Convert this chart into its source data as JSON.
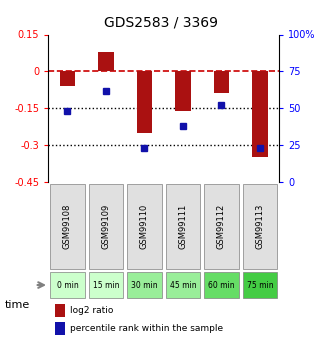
{
  "title": "GDS2583 / 3369",
  "samples": [
    "GSM99108",
    "GSM99109",
    "GSM99110",
    "GSM99111",
    "GSM99112",
    "GSM99113"
  ],
  "time_labels": [
    "0 min",
    "15 min",
    "30 min",
    "45 min",
    "60 min",
    "75 min"
  ],
  "log2_ratio": [
    -0.06,
    0.08,
    -0.25,
    -0.16,
    -0.09,
    -0.35
  ],
  "percentile_rank": [
    48,
    62,
    23,
    38,
    52,
    23
  ],
  "ylim_left": [
    -0.45,
    0.15
  ],
  "ylim_right": [
    0,
    100
  ],
  "yticks_left": [
    0.15,
    0,
    -0.15,
    -0.3,
    -0.45
  ],
  "yticks_right": [
    100,
    75,
    50,
    25,
    0
  ],
  "bar_color": "#aa1111",
  "dot_color": "#1111aa",
  "hline_color": "#cc0000",
  "dotline_color": "#000000",
  "time_colors": [
    "#ccffcc",
    "#ccffcc",
    "#99ee99",
    "#99ee99",
    "#66dd66",
    "#44cc44"
  ],
  "bg_color": "#e0e0e0"
}
